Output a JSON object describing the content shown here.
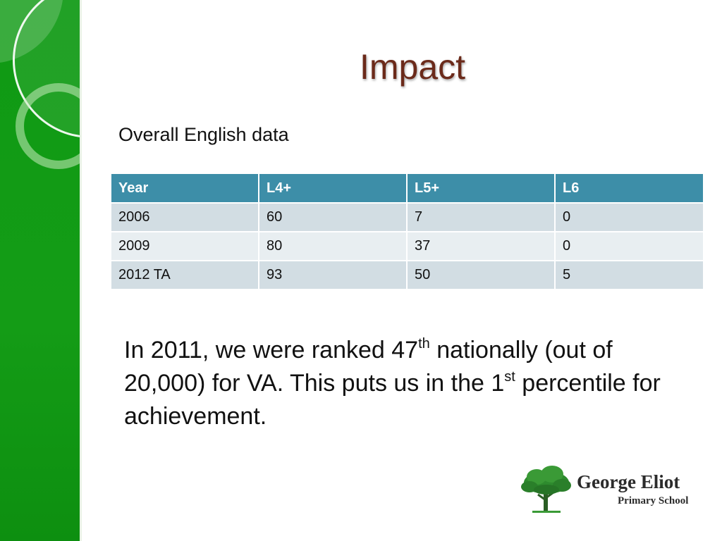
{
  "slide": {
    "title": "Impact",
    "subtitle": "Overall English data"
  },
  "table": {
    "headers": [
      "Year",
      "L4+",
      "L5+",
      "L6"
    ],
    "rows": [
      [
        "2006",
        "60",
        "7",
        "0"
      ],
      [
        "2009",
        "80",
        "37",
        "0"
      ],
      [
        "2012 TA",
        "93",
        "50",
        "5"
      ]
    ]
  },
  "body": {
    "part1": "In 2011,  we were ranked 47",
    "sup1": "th",
    "part2": " nationally (out of 20,000) for VA. This puts us in the 1",
    "sup2": "st",
    "part3": " percentile for achievement."
  },
  "logo": {
    "name": "George Eliot",
    "sub": "Primary School"
  },
  "colors": {
    "sidebar": "#0f9a14",
    "title": "#6b2a1a",
    "table_header": "#3d8ea8",
    "row_odd": "#d2dde3",
    "row_even": "#e8eef1",
    "tree": "#2e8b2e"
  }
}
